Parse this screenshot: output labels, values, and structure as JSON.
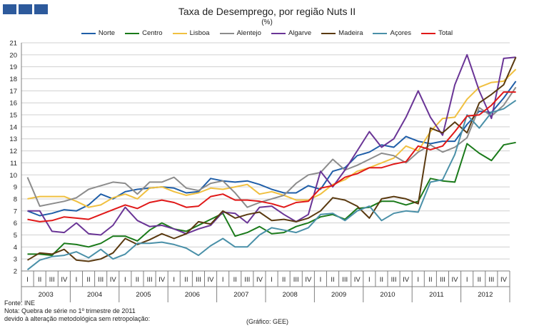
{
  "title": "Taxa de Desemprego, por região Nuts II",
  "subtitle": "(%)",
  "footer": {
    "source": "Fonte: INE",
    "note1": "Nota: Quebra de série no 1º trimestre de 2011",
    "note2": "devido à alteração metodológica sem retropolação:",
    "credit": "(Gráfico:  GEE)"
  },
  "chart_data": {
    "type": "line",
    "title": "Taxa de Desemprego, por região Nuts II",
    "ylabel": "(%)",
    "ylim": [
      2,
      21
    ],
    "yticks": [
      "2",
      "3",
      "4",
      "5",
      "6",
      "7",
      "8",
      "9",
      "10",
      "11",
      "12",
      "13",
      "14",
      "15",
      "16",
      "17",
      "18",
      "19",
      "20",
      "21"
    ],
    "grid": true,
    "legend_position": "top",
    "quarter_labels": [
      "I",
      "II",
      "III",
      "IV"
    ],
    "years": [
      "2003",
      "2004",
      "2005",
      "2006",
      "2007",
      "2008",
      "2009",
      "2010",
      "2011",
      "2012"
    ],
    "series": [
      {
        "name": "Norte",
        "color": "#1f5ea8",
        "values": [
          7.0,
          6.6,
          6.8,
          7.1,
          7.0,
          7.5,
          8.4,
          8.0,
          8.6,
          8.8,
          8.9,
          9.0,
          8.9,
          8.5,
          8.6,
          9.7,
          9.5,
          9.4,
          9.5,
          9.2,
          8.8,
          8.5,
          8.5,
          9.1,
          8.8,
          10.3,
          10.6,
          11.6,
          11.9,
          12.5,
          12.3,
          13.2,
          12.8,
          12.6,
          12.8,
          12.8,
          14.2,
          15.3,
          15.2,
          16.4,
          17.8
        ]
      },
      {
        "name": "Centro",
        "color": "#1a7a1a",
        "values": [
          3.4,
          3.4,
          3.3,
          4.3,
          4.2,
          4.0,
          4.3,
          4.9,
          4.9,
          4.5,
          5.4,
          6.0,
          5.5,
          5.3,
          5.8,
          6.3,
          6.8,
          4.9,
          5.2,
          5.7,
          5.1,
          5.2,
          5.7,
          6.0,
          6.5,
          6.7,
          6.3,
          7.2,
          7.3,
          7.8,
          7.8,
          7.5,
          7.8,
          9.7,
          9.5,
          9.4,
          12.6,
          11.8,
          11.2,
          12.5,
          12.7
        ]
      },
      {
        "name": "Lisboa",
        "color": "#f0c040",
        "values": [
          8.0,
          8.2,
          8.2,
          8.2,
          7.8,
          7.3,
          7.5,
          8.1,
          8.4,
          8.0,
          8.9,
          9.0,
          8.6,
          8.3,
          8.5,
          8.9,
          8.8,
          9.0,
          9.2,
          8.4,
          8.6,
          8.3,
          7.9,
          7.9,
          8.4,
          9.2,
          9.6,
          10.3,
          10.6,
          11.0,
          11.4,
          12.4,
          12.0,
          13.6,
          14.7,
          14.8,
          16.3,
          17.3,
          17.7,
          17.8,
          18.8
        ]
      },
      {
        "name": "Alentejo",
        "color": "#8c8c8c",
        "values": [
          9.8,
          7.4,
          7.6,
          7.8,
          8.1,
          8.8,
          9.1,
          9.4,
          9.3,
          8.4,
          9.4,
          9.4,
          9.8,
          8.9,
          8.7,
          9.3,
          9.5,
          8.5,
          7.3,
          7.7,
          8.0,
          8.3,
          9.3,
          10.0,
          10.2,
          11.3,
          10.4,
          10.8,
          11.3,
          11.8,
          11.6,
          11.0,
          11.9,
          12.5,
          11.9,
          12.3,
          13.1,
          15.6,
          14.9,
          15.8,
          17.3
        ]
      },
      {
        "name": "Algarve",
        "color": "#6a3596",
        "values": [
          7.0,
          7.0,
          5.3,
          5.2,
          6.0,
          5.1,
          5.0,
          5.8,
          7.3,
          6.2,
          5.7,
          5.8,
          5.5,
          5.1,
          5.5,
          5.8,
          6.9,
          6.8,
          6.0,
          7.3,
          7.4,
          6.7,
          6.1,
          6.7,
          10.3,
          9.0,
          10.4,
          12.0,
          13.6,
          12.3,
          13.0,
          14.8,
          17.0,
          14.8,
          13.3,
          17.5,
          20.0,
          17.0,
          14.7,
          19.7,
          19.8
        ]
      },
      {
        "name": "Madeira",
        "color": "#5a3a10",
        "values": [
          2.9,
          3.5,
          3.4,
          3.8,
          2.9,
          2.8,
          3.0,
          3.5,
          4.7,
          4.2,
          4.6,
          5.1,
          4.7,
          5.1,
          6.1,
          5.9,
          7.0,
          6.4,
          6.7,
          6.9,
          6.2,
          6.3,
          6.1,
          6.4,
          7.0,
          8.1,
          7.9,
          7.4,
          6.4,
          8.0,
          8.2,
          8.0,
          7.6,
          13.9,
          13.5,
          14.4,
          13.5,
          16.0,
          16.7,
          17.5,
          19.8
        ]
      },
      {
        "name": "Açores",
        "color": "#4a90a8",
        "values": [
          2.1,
          2.9,
          3.2,
          3.3,
          3.6,
          3.1,
          3.8,
          3.0,
          3.4,
          4.3,
          4.3,
          4.4,
          4.2,
          3.9,
          3.3,
          4.1,
          4.7,
          4.0,
          4.0,
          5.0,
          5.6,
          5.4,
          5.2,
          5.6,
          6.7,
          6.8,
          6.2,
          7.0,
          7.4,
          6.2,
          6.8,
          7.0,
          6.9,
          9.4,
          9.6,
          11.7,
          15.0,
          13.9,
          15.2,
          15.5,
          16.2
        ]
      },
      {
        "name": "Total",
        "color": "#e01818",
        "values": [
          6.3,
          6.1,
          6.2,
          6.5,
          6.4,
          6.3,
          6.7,
          7.1,
          7.5,
          7.2,
          7.7,
          7.9,
          7.7,
          7.3,
          7.4,
          8.2,
          8.4,
          7.9,
          7.9,
          7.8,
          7.6,
          7.3,
          7.7,
          7.8,
          8.9,
          9.1,
          9.8,
          10.1,
          10.6,
          10.6,
          10.9,
          11.1,
          12.4,
          12.1,
          12.4,
          13.6,
          14.9,
          15.0,
          15.8,
          16.9,
          16.9
        ]
      }
    ]
  }
}
